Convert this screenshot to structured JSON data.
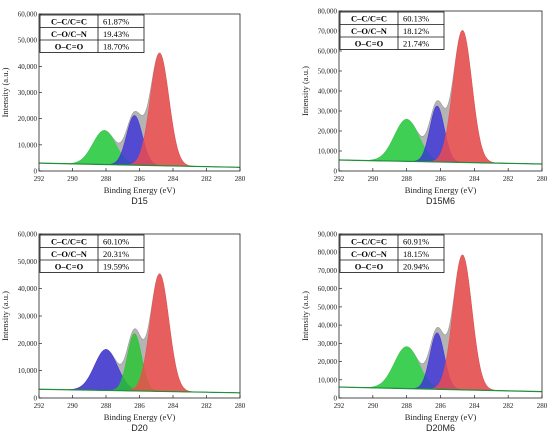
{
  "chart_data": [
    {
      "type": "area",
      "panel_label": "D15",
      "xlabel": "Binding Energy (eV)",
      "ylabel": "Intensity (a.u.)",
      "xlim": [
        292,
        280
      ],
      "ylim": [
        0,
        60000
      ],
      "xticks": [
        292,
        290,
        288,
        286,
        284,
        282,
        280
      ],
      "yticks": [
        0,
        10000,
        20000,
        30000,
        40000,
        50000,
        60000
      ],
      "ytick_labels": [
        "0",
        "10,000",
        "20,000",
        "30,000",
        "40,000",
        "50,000",
        "60,000"
      ],
      "baseline": [
        3000,
        1400
      ],
      "envelope_color": "#b4b4b4",
      "table": [
        {
          "label": "C–C/C=C",
          "value": "61.87%"
        },
        {
          "label": "C–O/C–N",
          "value": "19.43%"
        },
        {
          "label": "O–C=O",
          "value": "18.70%"
        }
      ],
      "series": [
        {
          "color": "#24d43e",
          "center": 288.1,
          "height": 13000,
          "fwhm": 1.6
        },
        {
          "color": "#3c32d6",
          "center": 286.3,
          "height": 19000,
          "fwhm": 1.1
        },
        {
          "color": "#f14b4b",
          "center": 284.8,
          "height": 43000,
          "fwhm": 1.3
        }
      ]
    },
    {
      "type": "area",
      "panel_label": "D15M6",
      "xlabel": "Binding Energy (eV)",
      "ylabel": "Intensity (a.u.)",
      "xlim": [
        292,
        280
      ],
      "ylim": [
        0,
        80000
      ],
      "xticks": [
        292,
        290,
        288,
        286,
        284,
        282,
        280
      ],
      "yticks": [
        0,
        10000,
        20000,
        30000,
        40000,
        50000,
        60000,
        70000,
        80000
      ],
      "ytick_labels": [
        "0",
        "10,000",
        "20,000",
        "30,000",
        "40,000",
        "50,000",
        "60,000",
        "70,000",
        "80,000"
      ],
      "baseline": [
        5500,
        3500
      ],
      "envelope_color": "#b4b4b4",
      "table": [
        {
          "label": "C–C/C=C",
          "value": "60.13%"
        },
        {
          "label": "C–O/C–N",
          "value": "18.12%"
        },
        {
          "label": "O–C=O",
          "value": "21.74%"
        }
      ],
      "series": [
        {
          "color": "#24d43e",
          "center": 288.0,
          "height": 21000,
          "fwhm": 1.7
        },
        {
          "color": "#3c32d6",
          "center": 286.2,
          "height": 28000,
          "fwhm": 1.0
        },
        {
          "color": "#f14b4b",
          "center": 284.7,
          "height": 66000,
          "fwhm": 1.3
        }
      ]
    },
    {
      "type": "area",
      "panel_label": "D20",
      "xlabel": "Binding Energy (eV)",
      "ylabel": "Intensity (a.u.)",
      "xlim": [
        292,
        280
      ],
      "ylim": [
        0,
        60000
      ],
      "xticks": [
        292,
        290,
        288,
        286,
        284,
        282,
        280
      ],
      "yticks": [
        0,
        10000,
        20000,
        30000,
        40000,
        50000,
        60000
      ],
      "ytick_labels": [
        "0",
        "10,000",
        "20,000",
        "30,000",
        "40,000",
        "50,000",
        "60,000"
      ],
      "baseline": [
        3200,
        1900
      ],
      "envelope_color": "#b4b4b4",
      "table": [
        {
          "label": "C–C/C=C",
          "value": "60.10%"
        },
        {
          "label": "C–O/C–N",
          "value": "20.31%"
        },
        {
          "label": "O–C=O",
          "value": "19.59%"
        }
      ],
      "series": [
        {
          "color": "#3c32d6",
          "center": 288.0,
          "height": 15000,
          "fwhm": 1.6
        },
        {
          "color": "#24c42e",
          "center": 286.3,
          "height": 21000,
          "fwhm": 1.0
        },
        {
          "color": "#f14b4b",
          "center": 284.8,
          "height": 43000,
          "fwhm": 1.3
        }
      ]
    },
    {
      "type": "area",
      "panel_label": "D20M6",
      "xlabel": "Binding Energy (eV)",
      "ylabel": "Intensity (a.u.)",
      "xlim": [
        292,
        280
      ],
      "ylim": [
        0,
        90000
      ],
      "xticks": [
        292,
        290,
        288,
        286,
        284,
        282,
        280
      ],
      "yticks": [
        0,
        10000,
        20000,
        30000,
        40000,
        50000,
        60000,
        70000,
        80000,
        90000
      ],
      "ytick_labels": [
        "0",
        "10,000",
        "20,000",
        "30,000",
        "40,000",
        "50,000",
        "60,000",
        "70,000",
        "80,000",
        "90,000"
      ],
      "baseline": [
        6000,
        3500
      ],
      "envelope_color": "#b4b4b4",
      "table": [
        {
          "label": "C–C/C=C",
          "value": "60.91%"
        },
        {
          "label": "C–O/C–N",
          "value": "18.15%"
        },
        {
          "label": "O–C=O",
          "value": "20.94%"
        }
      ],
      "series": [
        {
          "color": "#24d43e",
          "center": 288.0,
          "height": 23000,
          "fwhm": 1.7
        },
        {
          "color": "#3c32d6",
          "center": 286.2,
          "height": 31000,
          "fwhm": 1.0
        },
        {
          "color": "#f14b4b",
          "center": 284.7,
          "height": 74000,
          "fwhm": 1.3
        }
      ]
    }
  ]
}
